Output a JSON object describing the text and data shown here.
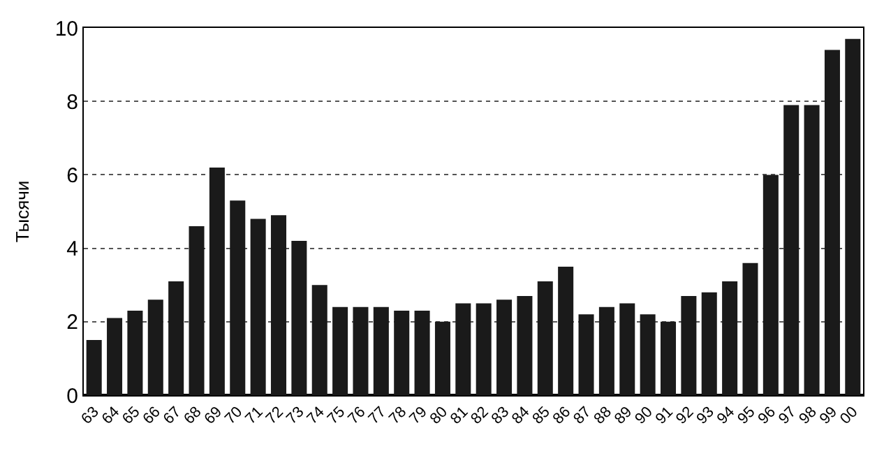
{
  "chart_data": {
    "type": "bar",
    "ylabel": "Тысячи",
    "categories": [
      "63",
      "64",
      "65",
      "66",
      "67",
      "68",
      "69",
      "70",
      "71",
      "72",
      "73",
      "74",
      "75",
      "76",
      "77",
      "78",
      "79",
      "80",
      "81",
      "82",
      "83",
      "84",
      "85",
      "86",
      "87",
      "88",
      "89",
      "90",
      "91",
      "92",
      "93",
      "94",
      "95",
      "96",
      "97",
      "98",
      "99",
      "00"
    ],
    "values": [
      1.5,
      2.1,
      2.3,
      2.6,
      3.1,
      4.6,
      6.2,
      5.3,
      4.8,
      4.9,
      4.2,
      3.0,
      2.4,
      2.4,
      2.4,
      2.3,
      2.3,
      2.0,
      2.5,
      2.5,
      2.6,
      2.7,
      3.1,
      3.5,
      2.2,
      2.4,
      2.5,
      2.2,
      2.0,
      2.7,
      2.8,
      3.1,
      3.6,
      6.0,
      7.9,
      7.9,
      9.4,
      9.7
    ],
    "color": "#1a1a1a",
    "ylim": [
      0,
      10
    ],
    "yticks": [
      0,
      2,
      4,
      6,
      8,
      10
    ],
    "grid": "y"
  }
}
